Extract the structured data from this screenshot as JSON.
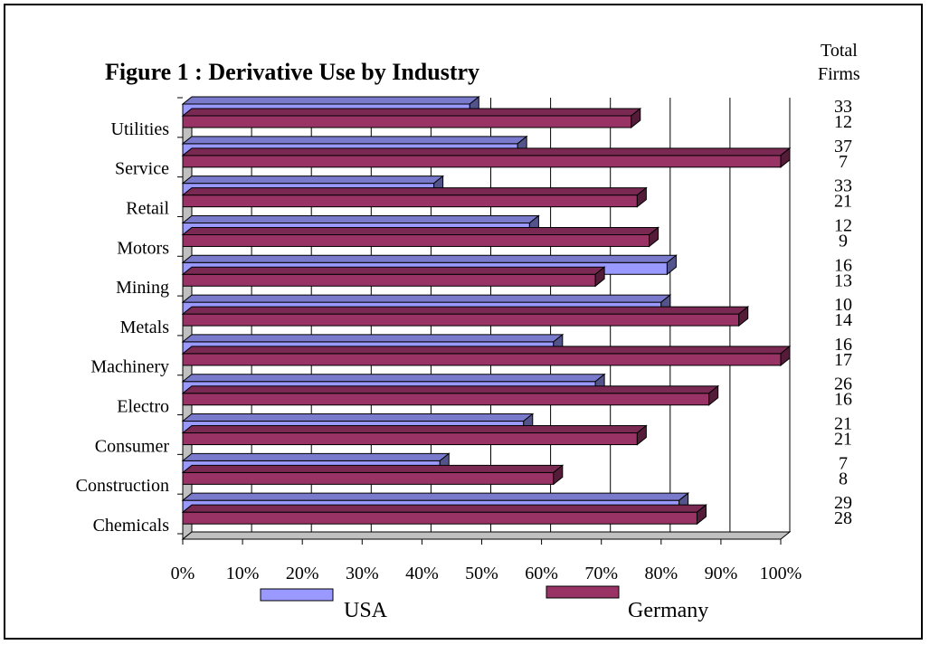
{
  "chart_data": {
    "type": "bar",
    "orientation": "horizontal",
    "three_d": true,
    "title": "Figure   1  : Derivative Use by Industry",
    "categories": [
      "Utilities",
      "Service",
      "Retail",
      "Motors",
      "Mining",
      "Metals",
      "Machinery",
      "Electro",
      "Consumer",
      "Construction",
      "Chemicals"
    ],
    "series": [
      {
        "name": "USA",
        "color": "#9999ff",
        "values": [
          48,
          56,
          42,
          58,
          81,
          80,
          62,
          69,
          57,
          43,
          83
        ]
      },
      {
        "name": "Germany",
        "color": "#993366",
        "values": [
          75,
          100,
          76,
          78,
          69,
          93,
          100,
          88,
          76,
          62,
          86
        ]
      }
    ],
    "total_firms_header": [
      "Total",
      "Firms"
    ],
    "total_firms": [
      {
        "usa": "33",
        "germany": "12"
      },
      {
        "usa": "37",
        "germany": "7"
      },
      {
        "usa": "33",
        "germany": "21"
      },
      {
        "usa": "12",
        "germany": "9"
      },
      {
        "usa": "16",
        "germany": "13"
      },
      {
        "usa": "10",
        "germany": "14"
      },
      {
        "usa": "16",
        "germany": "17"
      },
      {
        "usa": "26",
        "germany": "16"
      },
      {
        "usa": "21",
        "germany": "21"
      },
      {
        "usa": "7",
        "germany": "8"
      },
      {
        "usa": "29",
        "germany": "28"
      }
    ],
    "x_ticks": [
      "0%",
      "10%",
      "20%",
      "30%",
      "40%",
      "50%",
      "60%",
      "70%",
      "80%",
      "90%",
      "100%"
    ],
    "xlim": [
      0,
      100
    ],
    "grid": true,
    "legend": [
      "USA",
      "Germany"
    ],
    "legend_position": "bottom"
  }
}
